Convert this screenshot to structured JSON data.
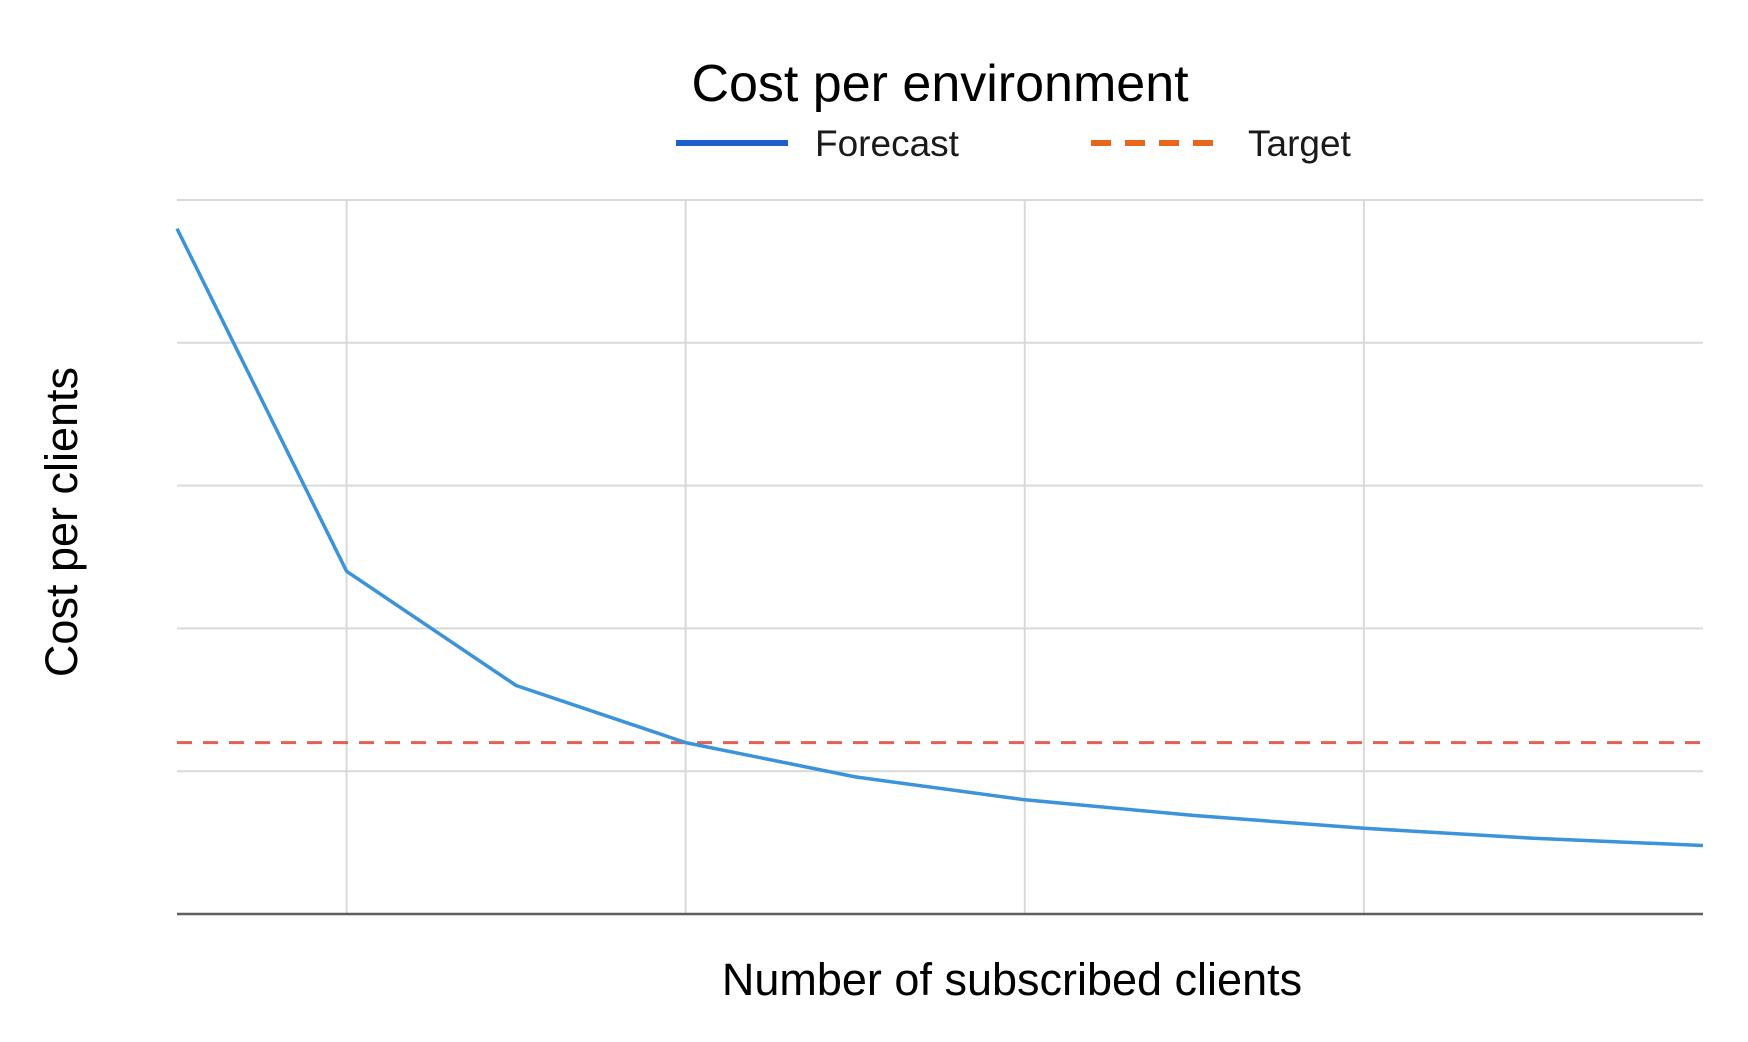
{
  "chart_data": {
    "type": "line",
    "title": "Cost per environment",
    "xlabel": "Number of subscribed clients",
    "ylabel": "Cost per clients",
    "x": [
      0,
      1,
      2,
      3,
      4,
      5,
      6,
      7,
      8,
      9
    ],
    "xlim": [
      0,
      9
    ],
    "ylim": [
      0,
      5
    ],
    "grid": true,
    "legend": "top",
    "series": [
      {
        "name": "Forecast",
        "style": "solid",
        "color": "#3a93db",
        "legend_color": "#1f5fcc",
        "values": [
          4.8,
          2.4,
          1.6,
          1.2,
          0.96,
          0.8,
          0.69,
          0.6,
          0.53,
          0.48
        ]
      },
      {
        "name": "Target",
        "style": "dashed",
        "color": "#e06155",
        "legend_color": "#e8661c",
        "values": [
          1.2,
          1.2,
          1.2,
          1.2,
          1.2,
          1.2,
          1.2,
          1.2,
          1.2,
          1.2
        ]
      }
    ]
  }
}
